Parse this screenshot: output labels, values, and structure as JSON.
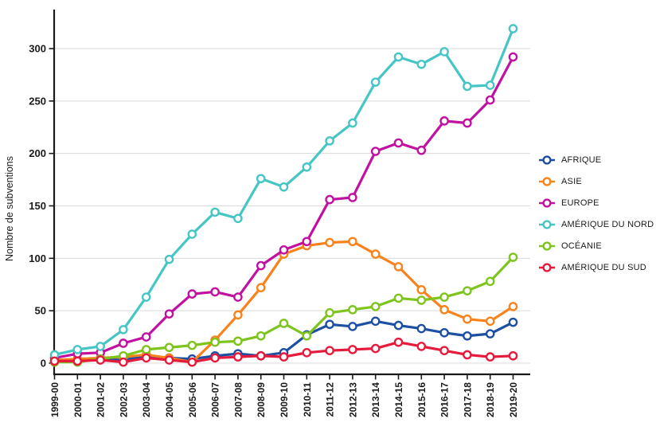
{
  "figure": {
    "ylabel": "Nombre de subventions",
    "background_color": "#ffffff",
    "gridline_color": "#d9d9d9",
    "axis_color": "#1a1a1a",
    "text_color": "#1a1a1a"
  },
  "chart_data": {
    "type": "line",
    "title": "",
    "xlabel": "",
    "ylabel": "Nombre de subventions",
    "ylim": [
      0,
      330
    ],
    "yticks": [
      0,
      50,
      100,
      150,
      200,
      250,
      300
    ],
    "grid": "horizontal",
    "legend_position": "right",
    "marker": "open-circle",
    "categories": [
      "1999-00",
      "2000-01",
      "2001-02",
      "2002-03",
      "2003-04",
      "2004-05",
      "2005-06",
      "2006-07",
      "2007-08",
      "2008-09",
      "2009-10",
      "2010-11",
      "2011-12",
      "2012-13",
      "2013-14",
      "2014-15",
      "2015-16",
      "2016-17",
      "2017-18",
      "2018-19",
      "2019-20"
    ],
    "series": [
      {
        "name": "AFRIQUE",
        "color": "#1d50a2",
        "values": [
          2,
          3,
          4,
          3,
          7,
          5,
          4,
          7,
          9,
          7,
          10,
          27,
          37,
          35,
          40,
          36,
          33,
          29,
          26,
          28,
          39
        ]
      },
      {
        "name": "ASIE",
        "color": "#f8821b",
        "values": [
          3,
          4,
          5,
          6,
          8,
          5,
          1,
          22,
          46,
          72,
          104,
          112,
          115,
          116,
          104,
          92,
          70,
          51,
          42,
          40,
          54
        ]
      },
      {
        "name": "EUROPE",
        "color": "#c111a1",
        "values": [
          5,
          9,
          10,
          19,
          25,
          47,
          66,
          68,
          63,
          93,
          108,
          116,
          156,
          158,
          202,
          210,
          203,
          231,
          229,
          251,
          292
        ]
      },
      {
        "name": "AMÉRIQUE DU NORD",
        "color": "#45c6c5",
        "values": [
          8,
          13,
          16,
          32,
          63,
          99,
          123,
          144,
          138,
          176,
          168,
          187,
          212,
          229,
          268,
          292,
          285,
          297,
          264,
          265,
          319
        ]
      },
      {
        "name": "OCÉANIE",
        "color": "#7dc41c",
        "values": [
          1,
          1,
          4,
          7,
          13,
          15,
          17,
          20,
          21,
          26,
          38,
          26,
          48,
          51,
          54,
          62,
          60,
          63,
          69,
          78,
          101
        ]
      },
      {
        "name": "AMÉRIQUE DU SUD",
        "color": "#e51a3c",
        "values": [
          2,
          2,
          3,
          1,
          5,
          3,
          1,
          5,
          6,
          7,
          6,
          10,
          12,
          13,
          14,
          20,
          16,
          12,
          8,
          6,
          7
        ]
      }
    ]
  }
}
